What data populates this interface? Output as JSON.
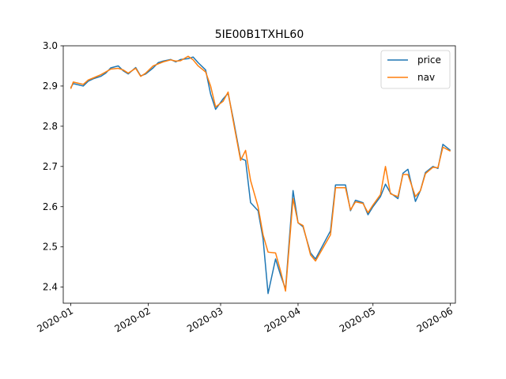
{
  "chart_data": {
    "type": "line",
    "title": "5IE00B1TXHL60",
    "xlabel": "",
    "ylabel": "",
    "xlim": [
      "2019-12-29",
      "2020-06-03"
    ],
    "ylim": [
      2.36,
      3.0
    ],
    "x_ticks": [
      "2020-01-01",
      "2020-02-01",
      "2020-03-01",
      "2020-04-01",
      "2020-05-01",
      "2020-06-01"
    ],
    "x_tick_labels": [
      "2020-01",
      "2020-02",
      "2020-03",
      "2020-04",
      "2020-05",
      "2020-06"
    ],
    "y_ticks": [
      2.4,
      2.5,
      2.6,
      2.7,
      2.8,
      2.9,
      3.0
    ],
    "y_tick_labels": [
      "2.4",
      "2.5",
      "2.6",
      "2.7",
      "2.8",
      "2.9",
      "3.0"
    ],
    "grid": false,
    "legend": "top-right",
    "x": [
      "2020-01-01",
      "2020-01-02",
      "2020-01-06",
      "2020-01-08",
      "2020-01-10",
      "2020-01-13",
      "2020-01-15",
      "2020-01-17",
      "2020-01-20",
      "2020-01-22",
      "2020-01-24",
      "2020-01-27",
      "2020-01-29",
      "2020-01-31",
      "2020-02-03",
      "2020-02-05",
      "2020-02-07",
      "2020-02-10",
      "2020-02-12",
      "2020-02-14",
      "2020-02-17",
      "2020-02-19",
      "2020-02-21",
      "2020-02-24",
      "2020-02-26",
      "2020-02-28",
      "2020-03-02",
      "2020-03-04",
      "2020-03-06",
      "2020-03-09",
      "2020-03-11",
      "2020-03-13",
      "2020-03-16",
      "2020-03-18",
      "2020-03-20",
      "2020-03-23",
      "2020-03-25",
      "2020-03-27",
      "2020-03-30",
      "2020-04-01",
      "2020-04-03",
      "2020-04-06",
      "2020-04-08",
      "2020-04-14",
      "2020-04-16",
      "2020-04-20",
      "2020-04-22",
      "2020-04-24",
      "2020-04-27",
      "2020-04-29",
      "2020-05-01",
      "2020-05-04",
      "2020-05-06",
      "2020-05-08",
      "2020-05-11",
      "2020-05-13",
      "2020-05-15",
      "2020-05-18",
      "2020-05-20",
      "2020-05-22",
      "2020-05-25",
      "2020-05-27",
      "2020-05-29",
      "2020-06-01"
    ],
    "series": [
      {
        "name": "price",
        "color": "#1f77b4",
        "values": [
          2.896,
          2.906,
          2.9,
          2.912,
          2.918,
          2.924,
          2.932,
          2.945,
          2.95,
          2.938,
          2.93,
          2.946,
          2.925,
          2.93,
          2.945,
          2.958,
          2.962,
          2.966,
          2.96,
          2.966,
          2.968,
          2.972,
          2.958,
          2.94,
          2.88,
          2.842,
          2.868,
          2.882,
          2.82,
          2.72,
          2.715,
          2.61,
          2.59,
          2.52,
          2.384,
          2.47,
          2.43,
          2.395,
          2.64,
          2.56,
          2.55,
          2.485,
          2.47,
          2.54,
          2.654,
          2.654,
          2.59,
          2.616,
          2.61,
          2.58,
          2.6,
          2.625,
          2.656,
          2.634,
          2.62,
          2.683,
          2.693,
          2.613,
          2.64,
          2.685,
          2.7,
          2.695,
          2.755,
          2.74
        ]
      },
      {
        "name": "nav",
        "color": "#ff7f0e",
        "values": [
          2.893,
          2.91,
          2.904,
          2.915,
          2.92,
          2.928,
          2.935,
          2.942,
          2.944,
          2.94,
          2.932,
          2.944,
          2.924,
          2.932,
          2.95,
          2.955,
          2.96,
          2.965,
          2.962,
          2.963,
          2.974,
          2.965,
          2.95,
          2.935,
          2.9,
          2.848,
          2.862,
          2.885,
          2.815,
          2.715,
          2.74,
          2.665,
          2.6,
          2.53,
          2.487,
          2.485,
          2.44,
          2.39,
          2.62,
          2.56,
          2.553,
          2.48,
          2.465,
          2.53,
          2.647,
          2.647,
          2.592,
          2.612,
          2.608,
          2.585,
          2.604,
          2.63,
          2.7,
          2.632,
          2.625,
          2.68,
          2.68,
          2.625,
          2.64,
          2.682,
          2.698,
          2.697,
          2.748,
          2.738
        ]
      }
    ]
  }
}
